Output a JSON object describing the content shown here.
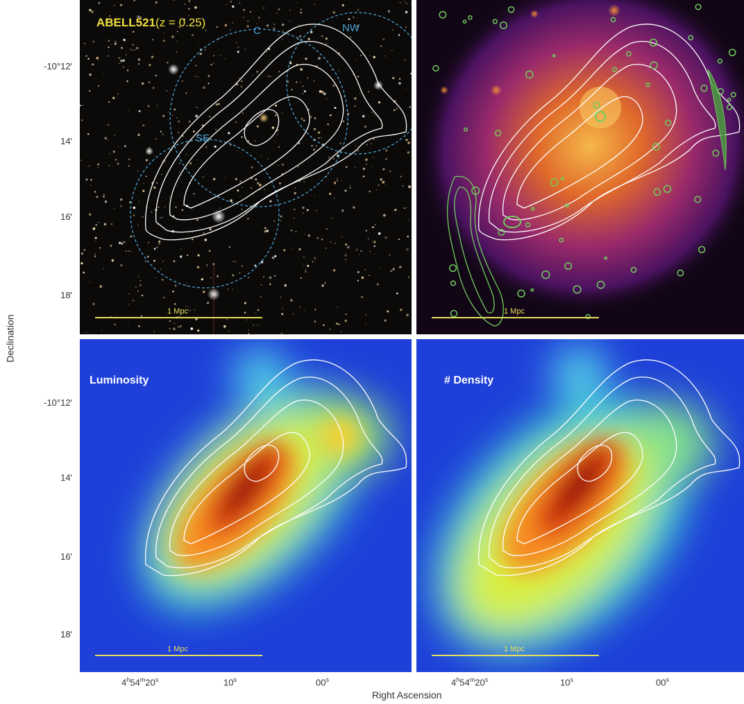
{
  "figure": {
    "y_axis_title": "Declination",
    "x_axis_title": "Right Ascension",
    "y_ticks": [
      "-10°12′",
      "14′",
      "16′",
      "18′"
    ],
    "x_ticks": [
      "4h54m20s",
      "10s",
      "00s"
    ]
  },
  "panels": {
    "optical": {
      "title_main": "ABELL521",
      "title_redshift": "(z = 0.25)",
      "regions": [
        "C",
        "NW",
        "SE"
      ],
      "scale_bar": "1 Mpc"
    },
    "xray": {
      "scale_bar": "1 Mpc"
    },
    "luminosity": {
      "title": "Luminosity",
      "scale_bar": "1 Mpc"
    },
    "density": {
      "title": "# Density",
      "scale_bar": "1 Mpc"
    }
  },
  "colors": {
    "title_yellow": "#f0e040",
    "region_blue": "#4aa3d8",
    "radio_green": "#6fce5a",
    "contour_white": "#ffffff"
  }
}
